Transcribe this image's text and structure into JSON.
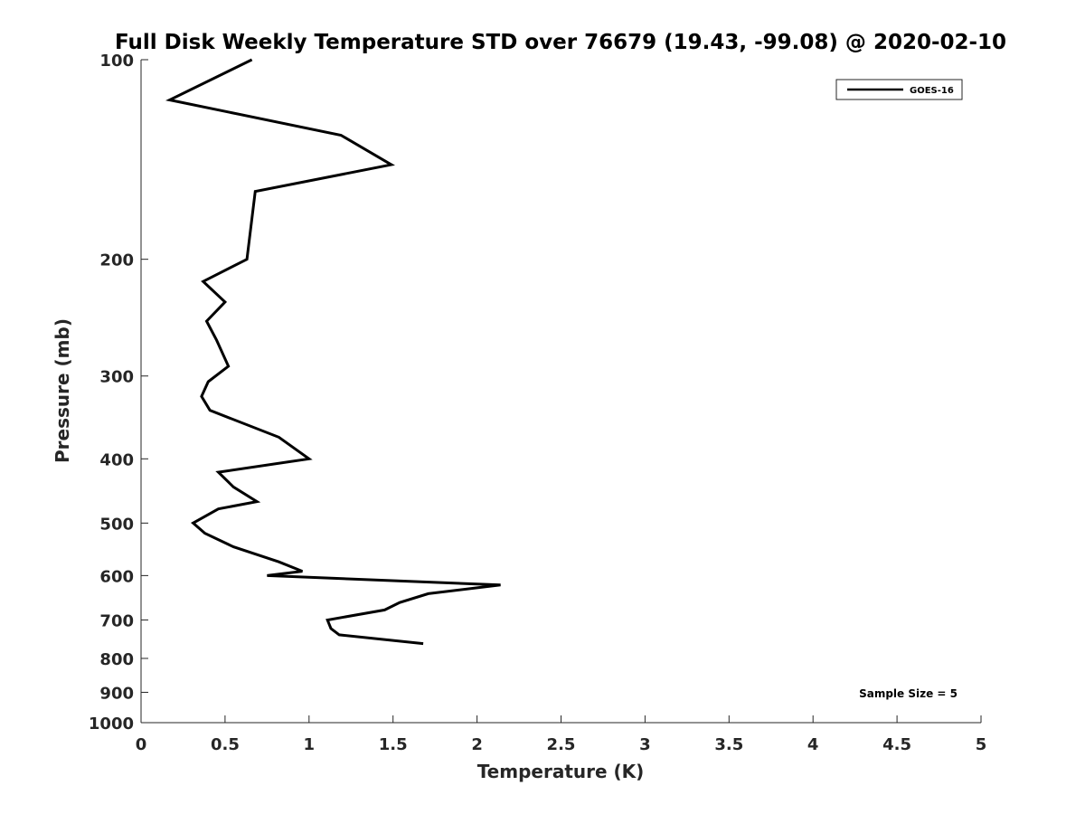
{
  "chart_data": {
    "type": "line",
    "title": "Full Disk Weekly Temperature STD over 76679 (19.43, -99.08) @ 2020-02-10",
    "xlabel": "Temperature (K)",
    "ylabel": "Pressure (mb)",
    "xlim": [
      0,
      5
    ],
    "ylim": [
      100,
      1000
    ],
    "y_scale": "log",
    "y_reversed": true,
    "grid": false,
    "legend_position": "top-right",
    "x_ticks": [
      "0",
      "0.5",
      "1",
      "1.5",
      "2",
      "2.5",
      "3",
      "3.5",
      "4",
      "4.5",
      "5"
    ],
    "y_ticks": [
      "100",
      "200",
      "300",
      "400",
      "500",
      "600",
      "700",
      "800",
      "900",
      "1000"
    ],
    "annotation": "Sample Size = 5",
    "series": [
      {
        "name": "GOES-16",
        "color": "#000000",
        "points": [
          {
            "x": 0.66,
            "y": 100
          },
          {
            "x": 0.17,
            "y": 115
          },
          {
            "x": 1.19,
            "y": 130
          },
          {
            "x": 1.49,
            "y": 144
          },
          {
            "x": 0.68,
            "y": 158
          },
          {
            "x": 0.63,
            "y": 200
          },
          {
            "x": 0.37,
            "y": 216
          },
          {
            "x": 0.5,
            "y": 232
          },
          {
            "x": 0.39,
            "y": 248
          },
          {
            "x": 0.45,
            "y": 265
          },
          {
            "x": 0.52,
            "y": 290
          },
          {
            "x": 0.4,
            "y": 306
          },
          {
            "x": 0.36,
            "y": 322
          },
          {
            "x": 0.41,
            "y": 338
          },
          {
            "x": 0.82,
            "y": 371
          },
          {
            "x": 1.0,
            "y": 400
          },
          {
            "x": 0.46,
            "y": 419
          },
          {
            "x": 0.55,
            "y": 441
          },
          {
            "x": 0.69,
            "y": 464
          },
          {
            "x": 0.46,
            "y": 476
          },
          {
            "x": 0.31,
            "y": 500
          },
          {
            "x": 0.38,
            "y": 518
          },
          {
            "x": 0.55,
            "y": 543
          },
          {
            "x": 0.82,
            "y": 572
          },
          {
            "x": 0.96,
            "y": 591
          },
          {
            "x": 0.75,
            "y": 600
          },
          {
            "x": 2.14,
            "y": 620
          },
          {
            "x": 1.71,
            "y": 639
          },
          {
            "x": 1.54,
            "y": 659
          },
          {
            "x": 1.45,
            "y": 676
          },
          {
            "x": 1.11,
            "y": 700
          },
          {
            "x": 1.13,
            "y": 721
          },
          {
            "x": 1.18,
            "y": 737
          },
          {
            "x": 1.68,
            "y": 760
          }
        ]
      }
    ]
  }
}
